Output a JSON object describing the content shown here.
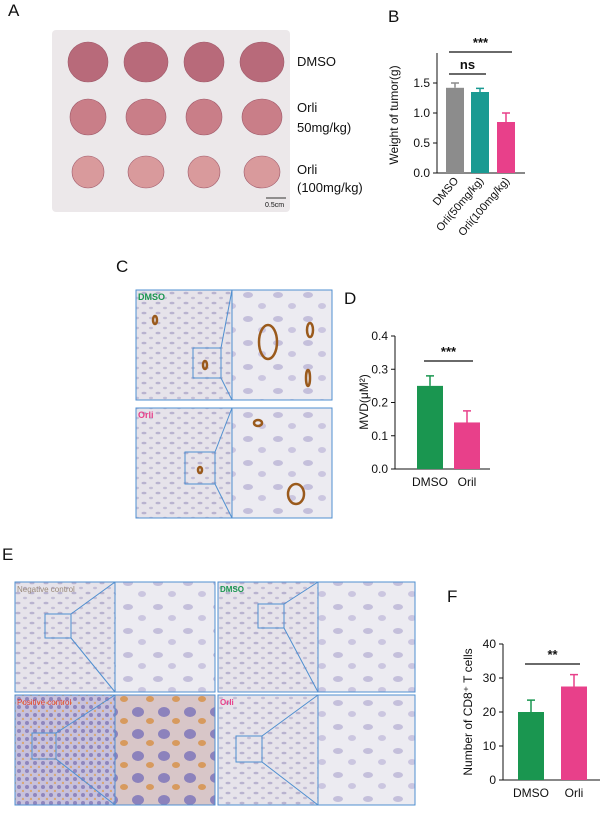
{
  "panel_letters": [
    "A",
    "B",
    "C",
    "D",
    "E",
    "F"
  ],
  "panel_a": {
    "labels": [
      [
        "DMSO"
      ],
      [
        "Orli",
        "50mg/kg)"
      ],
      [
        "Orli",
        "(100mg/kg)"
      ]
    ],
    "scale_bar": "0.5cm"
  },
  "panel_c": {
    "labels": [
      "DMSO",
      "Orli"
    ]
  },
  "panel_e": {
    "labels": [
      "Negative control",
      "DMSO",
      "Positive control",
      "Orli"
    ]
  },
  "chart_data": [
    {
      "type": "bar",
      "ylabel": "Weight of tumor(g)",
      "categories": [
        "DMSO",
        "Orli(50mg/kg)",
        "Orli(100mg/kg)"
      ],
      "values": [
        1.42,
        1.35,
        0.85
      ],
      "errors": [
        0.08,
        0.06,
        0.15
      ],
      "colors": [
        "#8c8c8c",
        "#1a9a92",
        "#e8408a"
      ],
      "ylim": [
        0,
        2
      ],
      "yticks": [
        {
          "value": 0,
          "label": "0.0"
        },
        0.5,
        {
          "value": 1,
          "label": "1.0"
        },
        1.5
      ],
      "annotations": [
        "ns",
        "***"
      ]
    },
    {
      "type": "bar",
      "ylabel": "MVD(μM²)",
      "categories": [
        "DMSO",
        "Oril"
      ],
      "values": [
        0.25,
        0.14
      ],
      "errors": [
        0.03,
        0.035
      ],
      "colors": [
        "#1a9650",
        "#e8408a"
      ],
      "ylim": [
        0,
        0.4
      ],
      "yticks": [
        {
          "value": 0,
          "label": "0.0"
        },
        0.1,
        0.2,
        0.3,
        0.4
      ],
      "annotations": [
        "***"
      ]
    },
    {
      "type": "bar",
      "ylabel": "Number of CD8⁺ T cells",
      "categories": [
        "DMSO",
        "Orli"
      ],
      "values": [
        20,
        27.5
      ],
      "errors": [
        3.5,
        3.5
      ],
      "colors": [
        "#1a9650",
        "#e8408a"
      ],
      "ylim": [
        0,
        40
      ],
      "yticks": [
        0,
        10,
        20,
        30,
        40
      ],
      "annotations": [
        "**"
      ]
    }
  ]
}
